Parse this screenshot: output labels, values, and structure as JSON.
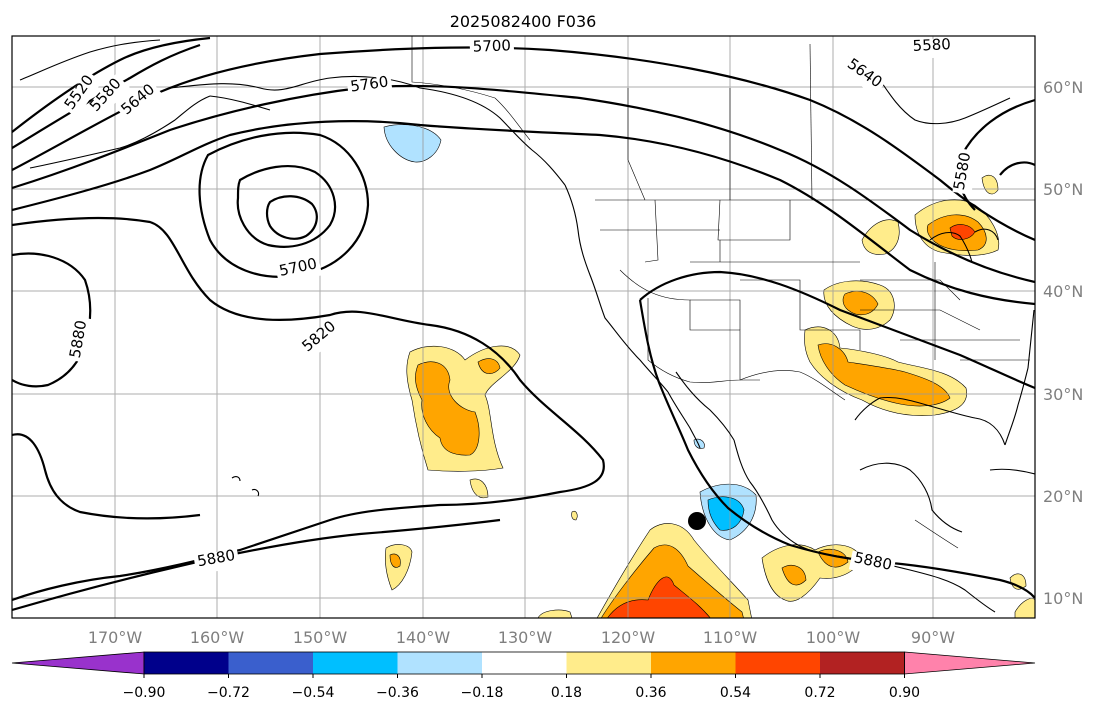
{
  "title": "2025082400 F036",
  "longitude_ticks": [
    "170°W",
    "160°W",
    "150°W",
    "140°W",
    "130°W",
    "120°W",
    "110°W",
    "100°W",
    "90°W"
  ],
  "latitude_ticks": [
    "60°N",
    "50°N",
    "40°N",
    "30°N",
    "20°N",
    "10°N"
  ],
  "contour_labels": [
    "5520",
    "5580",
    "5640",
    "5700",
    "5760",
    "5700",
    "5820",
    "5880",
    "5880",
    "5880",
    "5640",
    "5580",
    "5580"
  ],
  "colorbar": {
    "colors": [
      "#9932cc",
      "#00008b",
      "#3a5fcd",
      "#00bfff",
      "#b0e2ff",
      "#ffffff",
      "#ffec8b",
      "#ffa500",
      "#ff4500",
      "#b22222",
      "#ff82ab"
    ],
    "tick_labels": [
      "−0.90",
      "−0.72",
      "−0.54",
      "−0.36",
      "−0.18",
      "0.18",
      "0.36",
      "0.54",
      "0.72",
      "0.90"
    ]
  },
  "marker": "storm-center-dot"
}
